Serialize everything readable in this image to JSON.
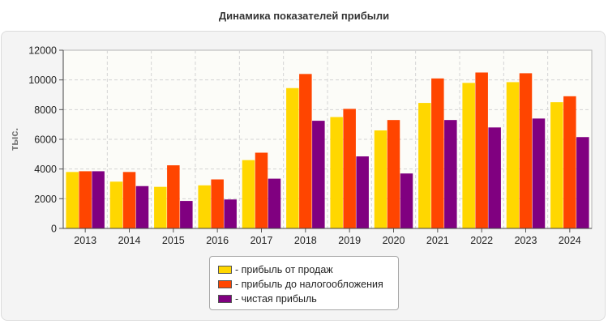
{
  "chart_data": {
    "type": "bar",
    "title": "Динамика показателей прибыли",
    "ylabel": "тыс.",
    "xlabel": "",
    "ylim": [
      0,
      12000
    ],
    "yticks": [
      0,
      2000,
      4000,
      6000,
      8000,
      10000,
      12000
    ],
    "grid": true,
    "legend_position": "bottom-center",
    "categories": [
      "2013",
      "2014",
      "2015",
      "2016",
      "2017",
      "2018",
      "2019",
      "2020",
      "2021",
      "2022",
      "2023",
      "2024"
    ],
    "series": [
      {
        "name": "- прибыль от продаж",
        "color": "#FFD700",
        "values": [
          3800,
          3150,
          2800,
          2900,
          4600,
          9450,
          7500,
          6600,
          8450,
          9800,
          9850,
          8500
        ]
      },
      {
        "name": "- прибыль до налогообложения",
        "color": "#FF4500",
        "values": [
          3850,
          3800,
          4250,
          3300,
          5100,
          10400,
          8050,
          7300,
          10100,
          10500,
          10450,
          8900
        ]
      },
      {
        "name": "- чистая прибыль",
        "color": "#800080",
        "values": [
          3850,
          2850,
          1850,
          1950,
          3350,
          7250,
          4850,
          3700,
          7300,
          6800,
          7400,
          6150
        ]
      }
    ]
  }
}
